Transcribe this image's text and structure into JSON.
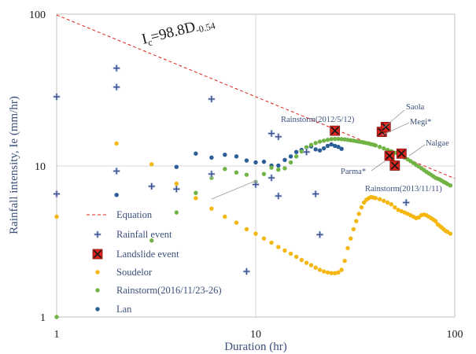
{
  "chart_data": {
    "type": "scatter",
    "x_scale": "log",
    "y_scale": "log",
    "xlim": [
      1,
      100
    ],
    "ylim": [
      1,
      100
    ],
    "xlabel": "Duration (hr)",
    "ylabel": "Rainfall intensity, Ie (mm/hr)",
    "x_ticks": [
      "1",
      "10",
      "100"
    ],
    "y_ticks": [
      "1",
      "10",
      "100"
    ],
    "grid": true,
    "legend_position": "bottom-left",
    "equation_label": {
      "base": "I",
      "sub": "c",
      "mid": "=98.8D",
      "sup": "-0.54"
    },
    "threshold": {
      "name": "Equation",
      "a": 98.8,
      "b": -0.54,
      "color": "#e0241b",
      "style": "dashed"
    },
    "series": [
      {
        "name": "Rainfall event",
        "marker": "plus",
        "color": "#3b4f8f",
        "points": [
          [
            1,
            28.5
          ],
          [
            1,
            6.5
          ],
          [
            2,
            44
          ],
          [
            2,
            33
          ],
          [
            2,
            9.2
          ],
          [
            3,
            7.3
          ],
          [
            4,
            7
          ],
          [
            6,
            27.5
          ],
          [
            6,
            8.8
          ],
          [
            9,
            2
          ],
          [
            10,
            7.5
          ],
          [
            12,
            16.3
          ],
          [
            12,
            8.3
          ],
          [
            13,
            15.5
          ],
          [
            13,
            6.3
          ],
          [
            18,
            12.3
          ],
          [
            20,
            6.5
          ],
          [
            21,
            3.5
          ],
          [
            57,
            5.7
          ]
        ]
      },
      {
        "name": "Landslide event",
        "marker": "x-box",
        "color": "#e3241b",
        "points": [
          [
            25,
            17
          ],
          [
            43,
            16.7
          ],
          [
            45,
            18
          ],
          [
            47,
            11.6
          ],
          [
            50,
            10
          ],
          [
            54,
            12
          ]
        ]
      },
      {
        "name": "Soudelor",
        "marker": "dot",
        "color": "#f5b70f",
        "points": [
          [
            1,
            4.6
          ],
          [
            2,
            14
          ],
          [
            3,
            10.2
          ],
          [
            4,
            7.6
          ],
          [
            5,
            6.1
          ],
          [
            6,
            5.2
          ],
          [
            7,
            4.6
          ],
          [
            8,
            4.2
          ],
          [
            9,
            3.8
          ],
          [
            10,
            3.55
          ],
          [
            11,
            3.3
          ],
          [
            12,
            3.1
          ],
          [
            13,
            2.9
          ],
          [
            14,
            2.75
          ],
          [
            15,
            2.62
          ],
          [
            16,
            2.5
          ],
          [
            17,
            2.38
          ],
          [
            18,
            2.28
          ],
          [
            19,
            2.2
          ],
          [
            20,
            2.12
          ],
          [
            21,
            2.05
          ],
          [
            22,
            2
          ],
          [
            23,
            1.97
          ],
          [
            24,
            1.95
          ],
          [
            25,
            1.95
          ],
          [
            26,
            1.97
          ],
          [
            27,
            2.05
          ],
          [
            28,
            2.35
          ],
          [
            29,
            2.85
          ],
          [
            30,
            3.3
          ],
          [
            31,
            3.8
          ],
          [
            32,
            4.3
          ],
          [
            33,
            4.8
          ],
          [
            34,
            5.3
          ],
          [
            35,
            5.7
          ],
          [
            36,
            5.95
          ],
          [
            37,
            6.1
          ],
          [
            38,
            6.2
          ],
          [
            39,
            6.15
          ],
          [
            40,
            6.1
          ],
          [
            42,
            6
          ],
          [
            44,
            5.85
          ],
          [
            46,
            5.7
          ],
          [
            48,
            5.55
          ],
          [
            50,
            5.3
          ],
          [
            52,
            5.1
          ],
          [
            54,
            5
          ],
          [
            56,
            4.9
          ],
          [
            58,
            4.8
          ],
          [
            60,
            4.7
          ],
          [
            62,
            4.6
          ],
          [
            64,
            4.5
          ],
          [
            66,
            4.55
          ],
          [
            68,
            4.7
          ],
          [
            70,
            4.75
          ],
          [
            72,
            4.7
          ],
          [
            74,
            4.6
          ],
          [
            76,
            4.5
          ],
          [
            78,
            4.4
          ],
          [
            80,
            4.3
          ],
          [
            82,
            4.1
          ],
          [
            84,
            4
          ],
          [
            86,
            3.9
          ],
          [
            88,
            3.8
          ],
          [
            90,
            3.7
          ],
          [
            92,
            3.65
          ],
          [
            95,
            3.55
          ]
        ]
      },
      {
        "name": "Rainstorm(2016/11/23-26)",
        "marker": "dot",
        "color": "#71b345",
        "points": [
          [
            1,
            1
          ],
          [
            3,
            3.2
          ],
          [
            4,
            4.9
          ],
          [
            5,
            6.6
          ],
          [
            6,
            8.3
          ],
          [
            7,
            9.5
          ],
          [
            8,
            9
          ],
          [
            9,
            8.7
          ],
          [
            10,
            7.8
          ],
          [
            11,
            8.8
          ],
          [
            12,
            9.7
          ],
          [
            13,
            9.4
          ],
          [
            14,
            9.6
          ],
          [
            15,
            10.5
          ],
          [
            16,
            11.5
          ],
          [
            17,
            12.4
          ],
          [
            18,
            13.2
          ],
          [
            19,
            13.7
          ],
          [
            20,
            14.1
          ],
          [
            21,
            14.4
          ],
          [
            22,
            14.6
          ],
          [
            23,
            14.8
          ],
          [
            24,
            14.95
          ],
          [
            25,
            15
          ],
          [
            26,
            15
          ],
          [
            27,
            14.95
          ],
          [
            28,
            14.9
          ],
          [
            29,
            14.8
          ],
          [
            30,
            14.7
          ],
          [
            31,
            14.6
          ],
          [
            32,
            14.5
          ],
          [
            33,
            14.4
          ],
          [
            34,
            14.3
          ],
          [
            35,
            14.2
          ],
          [
            36,
            14.1
          ],
          [
            37,
            14
          ],
          [
            38,
            13.85
          ],
          [
            39,
            13.75
          ],
          [
            40,
            13.6
          ],
          [
            42,
            13.3
          ],
          [
            44,
            13
          ],
          [
            46,
            12.7
          ],
          [
            48,
            12.45
          ],
          [
            50,
            12.15
          ],
          [
            52,
            11.9
          ],
          [
            54,
            11.6
          ],
          [
            56,
            11.3
          ],
          [
            58,
            11
          ],
          [
            60,
            10.7
          ],
          [
            62,
            10.4
          ],
          [
            64,
            10.1
          ],
          [
            66,
            9.85
          ],
          [
            68,
            9.6
          ],
          [
            70,
            9.35
          ],
          [
            72,
            9.1
          ],
          [
            74,
            8.9
          ],
          [
            76,
            8.7
          ],
          [
            78,
            8.5
          ],
          [
            80,
            8.3
          ],
          [
            82,
            8.2
          ],
          [
            84,
            8.1
          ],
          [
            86,
            7.95
          ],
          [
            88,
            7.8
          ],
          [
            90,
            7.7
          ],
          [
            92,
            7.55
          ],
          [
            95,
            7.4
          ]
        ]
      },
      {
        "name": "Lan",
        "marker": "dot",
        "color": "#2b5d97",
        "points": [
          [
            1,
            6.5
          ],
          [
            2,
            6.4
          ],
          [
            3,
            7.3
          ],
          [
            4,
            9.8
          ],
          [
            5,
            12
          ],
          [
            6,
            11.3
          ],
          [
            7,
            11.8
          ],
          [
            8,
            11.5
          ],
          [
            9,
            10.8
          ],
          [
            10,
            10.5
          ],
          [
            11,
            10.6
          ],
          [
            12,
            10
          ],
          [
            13,
            10
          ],
          [
            14,
            10.9
          ],
          [
            15,
            11.5
          ],
          [
            16,
            12.3
          ],
          [
            17,
            12.7
          ],
          [
            18,
            13.2
          ],
          [
            19,
            13.4
          ],
          [
            20,
            12.8
          ],
          [
            21,
            12.6
          ],
          [
            22,
            13
          ],
          [
            23,
            13.5
          ],
          [
            24,
            13.8
          ],
          [
            25,
            13.5
          ],
          [
            26,
            13.3
          ],
          [
            27,
            12.9
          ]
        ]
      }
    ],
    "annotations": [
      {
        "text": "Rainstorm(2012/5/12)",
        "target": [
          25,
          17
        ]
      },
      {
        "text": "Saola",
        "target": [
          45,
          18
        ]
      },
      {
        "text": "Megi*",
        "target": [
          43,
          16.7
        ]
      },
      {
        "text": "Nalgae",
        "target": [
          54,
          12
        ]
      },
      {
        "text": "Parma*",
        "target": [
          47,
          11.6
        ]
      },
      {
        "text": "Rainstorm(2013/11/11)",
        "target": [
          50,
          10
        ]
      }
    ]
  }
}
